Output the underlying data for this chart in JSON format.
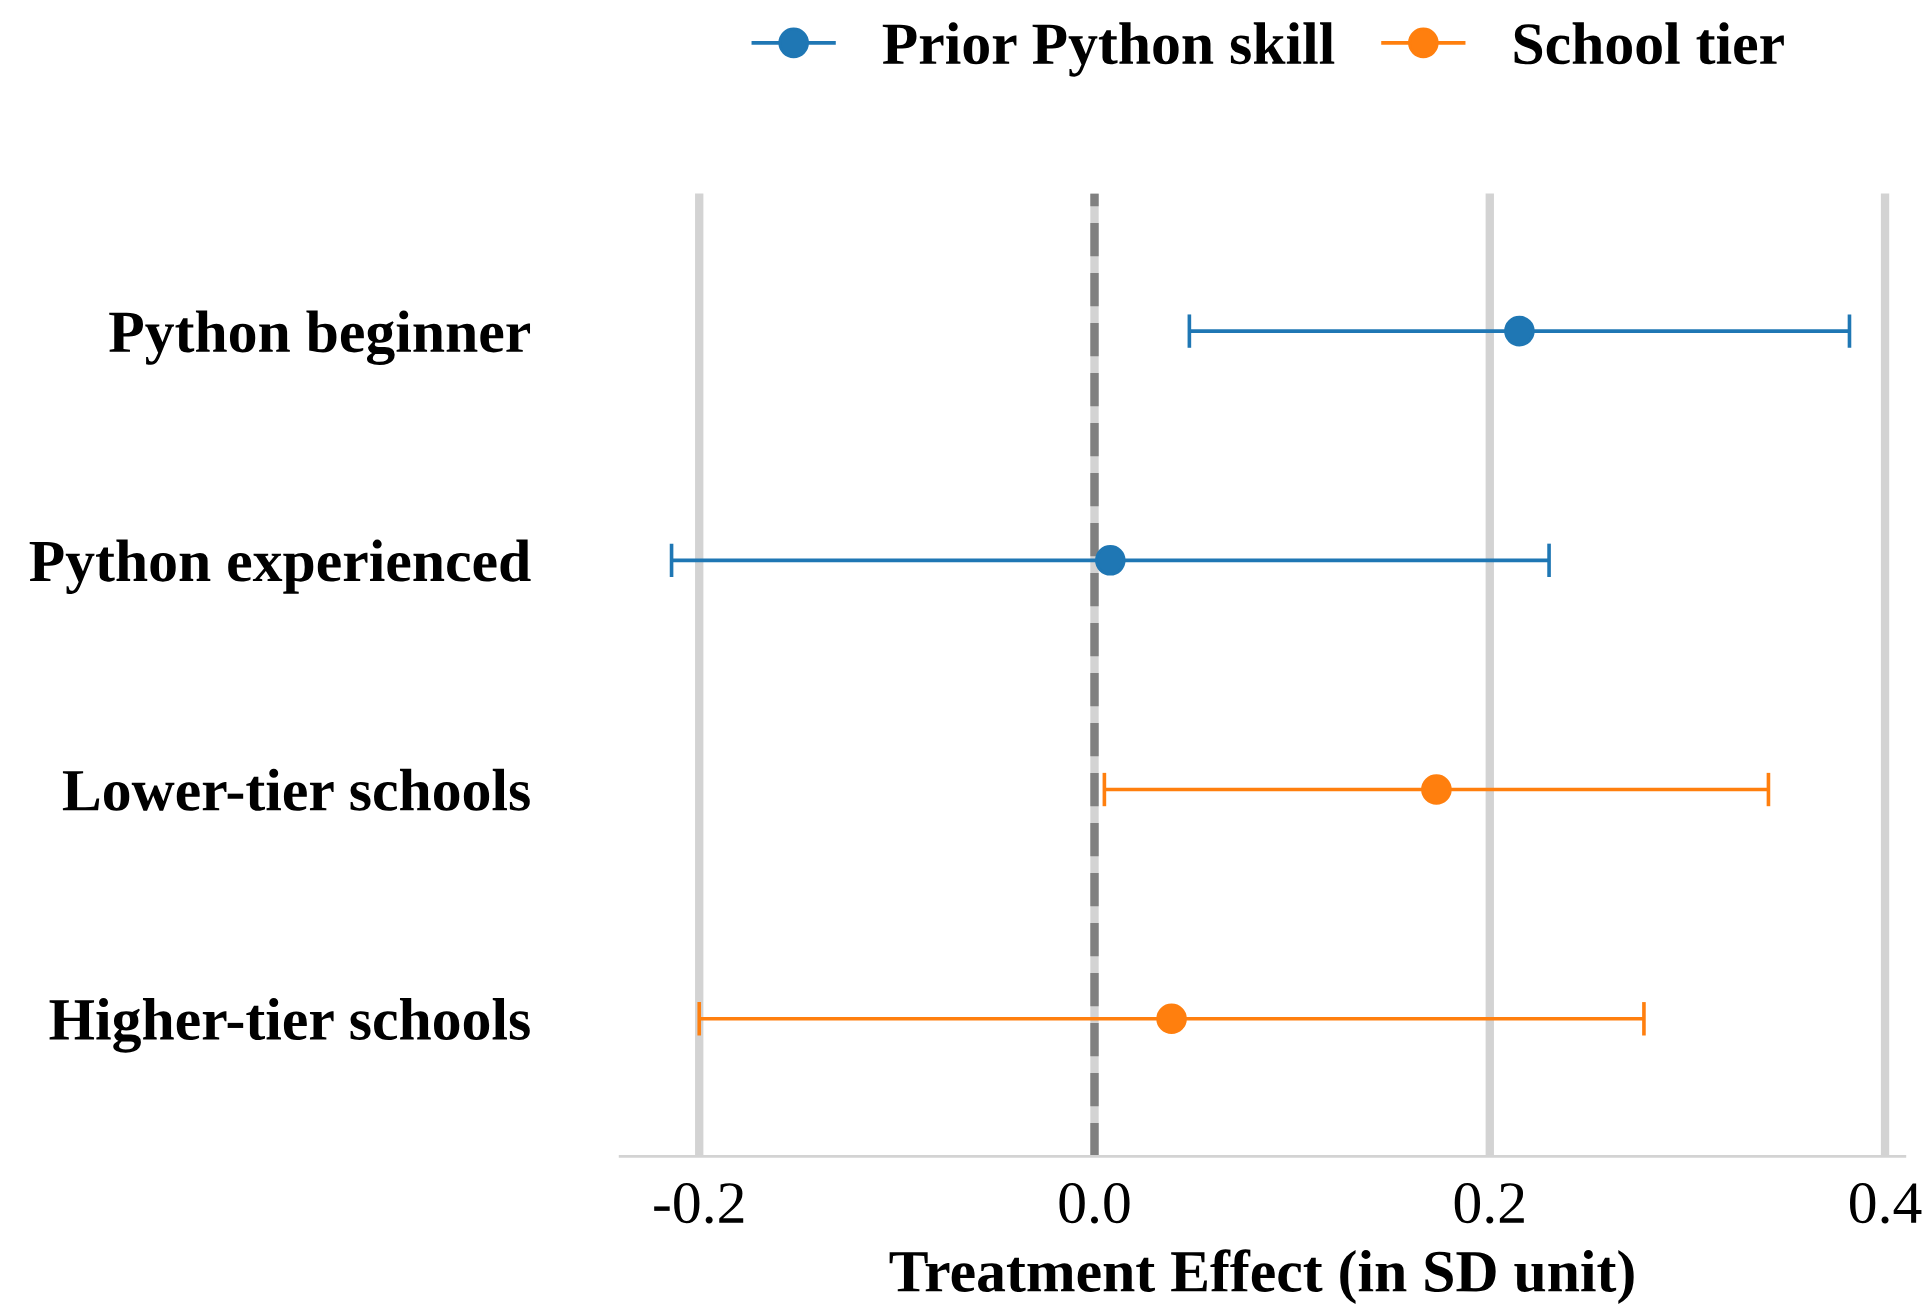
{
  "chart_data": {
    "type": "scatter",
    "orientation": "horizontal",
    "xlabel": "Treatment Effect (in SD unit)",
    "categories": [
      "Python beginner",
      "Python experienced",
      "Lower-tier schools",
      "Higher-tier schools"
    ],
    "series": [
      {
        "name": "Prior Python skill",
        "color": "#1f77b4",
        "values": [
          0.215,
          0.008,
          null,
          null
        ],
        "errors": [
          0.167,
          0.222,
          null,
          null
        ]
      },
      {
        "name": "School tier",
        "color": "#ff7f0e",
        "values": [
          null,
          null,
          0.173,
          0.039
        ],
        "errors": [
          null,
          null,
          0.168,
          0.239
        ]
      }
    ],
    "xlim": [
      -0.24,
      0.41
    ],
    "xticks": [
      -0.2,
      {
        "value": 0,
        "label": "0.0"
      },
      0.2,
      0.4
    ],
    "ref_lines": [
      {
        "axis": "x",
        "value": 0,
        "color": "#808080",
        "line_style": "dashed"
      }
    ],
    "grid": "x",
    "legend": "top",
    "marker": "circle"
  }
}
